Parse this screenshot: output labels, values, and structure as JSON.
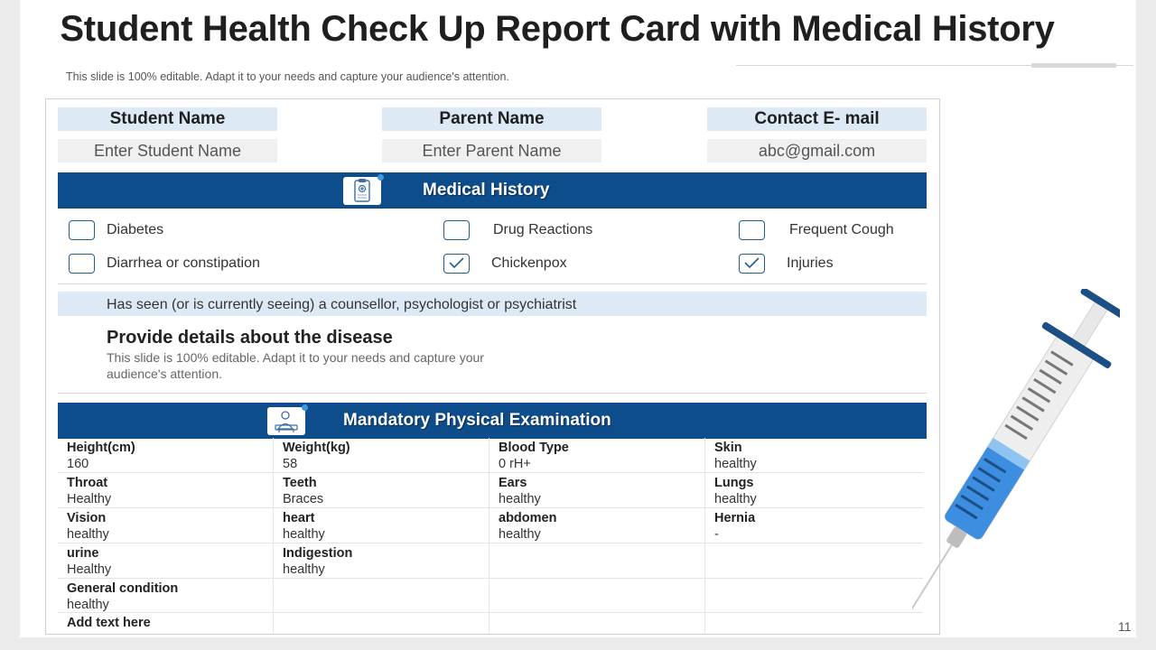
{
  "title": "Student Health Check Up Report Card with Medical History",
  "subtitle": "This slide is 100% editable. Adapt it to your needs and capture your audience's attention.",
  "fields": [
    {
      "label": "Student Name",
      "value": "Enter Student Name"
    },
    {
      "label": "Parent Name",
      "value": "Enter Parent Name"
    },
    {
      "label": "Contact E- mail",
      "value": "abc@gmail.com"
    }
  ],
  "medical_history": {
    "title": "Medical History",
    "icon": "clipboard-icon",
    "conditions": [
      {
        "label": "Diabetes",
        "checked": false
      },
      {
        "label": "Drug Reactions",
        "checked": false
      },
      {
        "label": "Frequent Cough",
        "checked": false
      },
      {
        "label": "Diarrhea or constipation",
        "checked": false
      },
      {
        "label": "Chickenpox",
        "checked": true
      },
      {
        "label": "Injuries",
        "checked": true
      }
    ],
    "counsellor": "Has seen (or is currently seeing) a counsellor,  psychologist or psychiatrist",
    "details_title": "Provide details about the disease",
    "details_text": "This slide is 100% editable. Adapt it to your needs and capture your audience's attention."
  },
  "physical_exam": {
    "title": "Mandatory Physical Examination",
    "icon": "doctor-icon",
    "rows": [
      [
        {
          "label": "Height(cm)",
          "value": "160"
        },
        {
          "label": "Weight(kg)",
          "value": "58"
        },
        {
          "label": "Blood Type",
          "value": "0 rH+"
        },
        {
          "label": "Skin",
          "value": "healthy"
        }
      ],
      [
        {
          "label": "Throat",
          "value": "Healthy"
        },
        {
          "label": "Teeth",
          "value": "Braces"
        },
        {
          "label": "Ears",
          "value": "healthy"
        },
        {
          "label": "Lungs",
          "value": "healthy"
        }
      ],
      [
        {
          "label": "Vision",
          "value": "healthy"
        },
        {
          "label": "heart",
          "value": "healthy"
        },
        {
          "label": "abdomen",
          "value": "healthy"
        },
        {
          "label": "Hernia",
          "value": "-"
        }
      ],
      [
        {
          "label": "urine",
          "value": "Healthy"
        },
        {
          "label": "Indigestion",
          "value": "healthy"
        },
        {
          "label": "",
          "value": ""
        },
        {
          "label": "",
          "value": ""
        }
      ],
      [
        {
          "label": "General condition",
          "value": "healthy"
        },
        {
          "label": "",
          "value": ""
        },
        {
          "label": "",
          "value": ""
        },
        {
          "label": "",
          "value": ""
        }
      ],
      [
        {
          "label": "Add text here",
          "value": ""
        },
        {
          "label": "",
          "value": ""
        },
        {
          "label": "",
          "value": ""
        },
        {
          "label": "",
          "value": ""
        }
      ]
    ]
  },
  "decoration": {
    "icon": "syringe-icon"
  },
  "page_number": "11",
  "colors": {
    "band": "#0e4d8c",
    "label_bg": "#ddeaf6",
    "input_bg": "#f0f0f0",
    "checkbox": "#1f5c99"
  }
}
